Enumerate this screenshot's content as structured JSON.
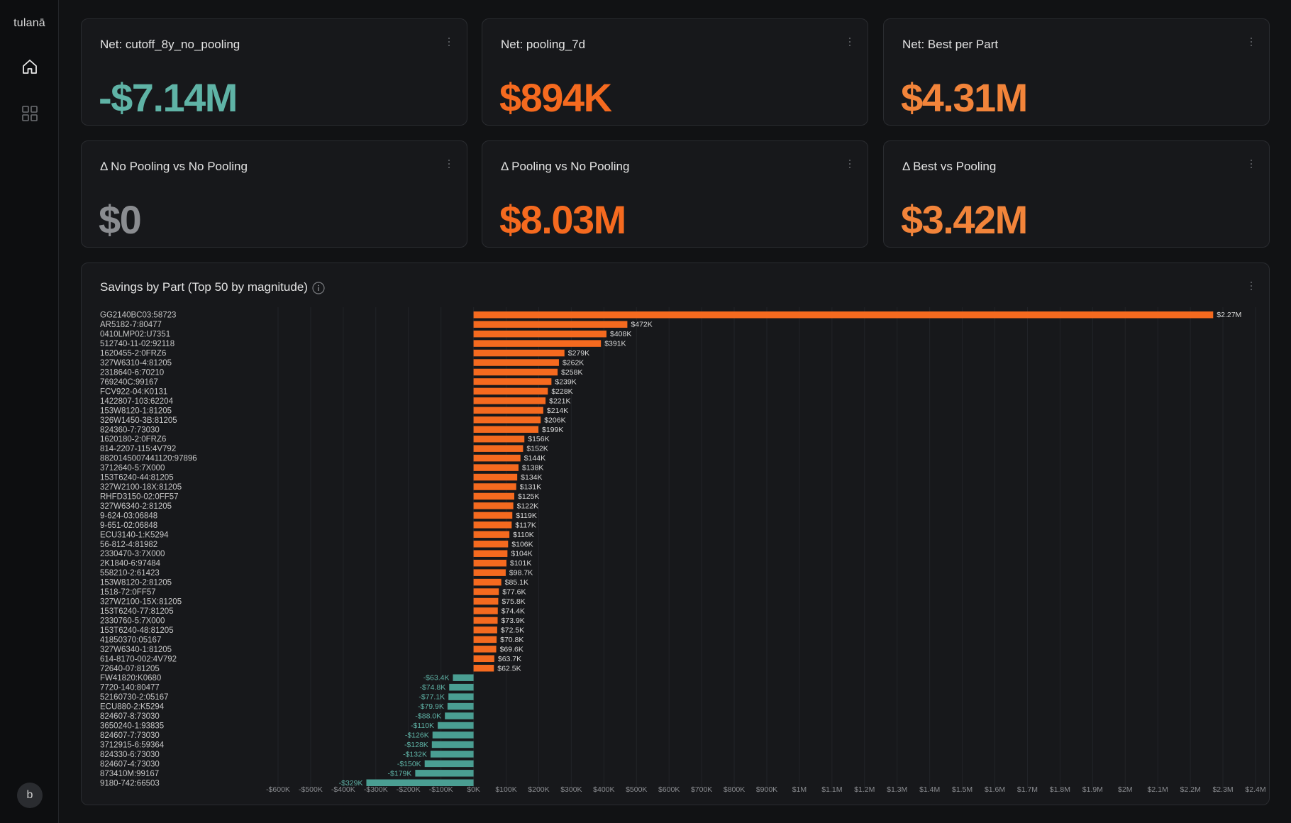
{
  "app": {
    "logo": "tulanā",
    "user_initial": "b"
  },
  "nav": [
    {
      "icon": "home-icon",
      "active": true
    },
    {
      "icon": "grid-icon",
      "active": false
    }
  ],
  "colors": {
    "orange": "#f56a1f",
    "teal": "#4a9e92",
    "gray": "#8a8c90",
    "light_orange": "#f2843a"
  },
  "kpis": [
    {
      "title": "Net: cutoff_8y_no_pooling",
      "value": "-$7.14M",
      "color": "#5fb3a6"
    },
    {
      "title": "Net: pooling_7d",
      "value": "$894K",
      "color": "#f56a1f"
    },
    {
      "title": "Net: Best per Part",
      "value": "$4.31M",
      "color": "#f2843a"
    },
    {
      "title": "Δ No Pooling vs No Pooling",
      "value": "$0",
      "color": "#8a8c90"
    },
    {
      "title": "Δ Pooling vs No Pooling",
      "value": "$8.03M",
      "color": "#f56a1f"
    },
    {
      "title": "Δ Best vs Pooling",
      "value": "$3.42M",
      "color": "#f2843a"
    }
  ],
  "chart": {
    "title": "Savings by Part (Top 50 by magnitude)"
  },
  "chart_data": {
    "type": "bar",
    "orientation": "horizontal",
    "title": "Savings by Part (Top 50 by magnitude)",
    "xlim": [
      -600000,
      2400000
    ],
    "grid": true,
    "x_ticks": [
      "-$600K",
      "-$500K",
      "-$400K",
      "-$300K",
      "-$200K",
      "-$100K",
      "$0K",
      "$100K",
      "$200K",
      "$300K",
      "$400K",
      "$500K",
      "$600K",
      "$700K",
      "$800K",
      "$900K",
      "$1M",
      "$1.1M",
      "$1.2M",
      "$1.3M",
      "$1.4M",
      "$1.5M",
      "$1.6M",
      "$1.7M",
      "$1.8M",
      "$1.9M",
      "$2M",
      "$2.1M",
      "$2.2M",
      "$2.3M",
      "$2.4M"
    ],
    "categories": [
      "GG2140BC03:58723",
      "AR5182-7:80477",
      "0410LMP02:U7351",
      "512740-11-02:92118",
      "1620455-2:0FRZ6",
      "327W6310-4:81205",
      "2318640-6:70210",
      "769240C:99167",
      "FCV922-04:K0131",
      "1422807-103:62204",
      "153W8120-1:81205",
      "326W1450-3B:81205",
      "824360-7:73030",
      "1620180-2:0FRZ6",
      "814-2207-115:4V792",
      "8820145007441120:97896",
      "3712640-5:7X000",
      "153T6240-44:81205",
      "327W2100-18X:81205",
      "RHFD3150-02:0FF57",
      "327W6340-2:81205",
      "9-624-03:06848",
      "9-651-02:06848",
      "ECU3140-1:K5294",
      "56-812-4:81982",
      "2330470-3:7X000",
      "2K1840-6:97484",
      "558210-2:61423",
      "153W8120-2:81205",
      "1518-72:0FF57",
      "327W2100-15X:81205",
      "153T6240-77:81205",
      "2330760-5:7X000",
      "153T6240-48:81205",
      "41850370:05167",
      "327W6340-1:81205",
      "614-8170-002:4V792",
      "72640-07:81205",
      "FW41820:K0680",
      "7720-140:80477",
      "52160730-2:05167",
      "ECU880-2:K5294",
      "824607-8:73030",
      "3650240-1:93835",
      "824607-7:73030",
      "3712915-6:59364",
      "824330-6:73030",
      "824607-4:73030",
      "873410M:99167",
      "9180-742:66503"
    ],
    "values": [
      2270000,
      472000,
      408000,
      391000,
      279000,
      262000,
      258000,
      239000,
      228000,
      221000,
      214000,
      206000,
      199000,
      156000,
      152000,
      144000,
      138000,
      134000,
      131000,
      125000,
      122000,
      119000,
      117000,
      110000,
      106000,
      104000,
      101000,
      98700,
      85100,
      77600,
      75800,
      74400,
      73900,
      72500,
      70800,
      69600,
      63700,
      62500,
      -63400,
      -74800,
      -77100,
      -79900,
      -88000,
      -110000,
      -126000,
      -128000,
      -132000,
      -150000,
      -179000,
      -329000
    ],
    "labels": [
      "$2.27M",
      "$472K",
      "$408K",
      "$391K",
      "$279K",
      "$262K",
      "$258K",
      "$239K",
      "$228K",
      "$221K",
      "$214K",
      "$206K",
      "$199K",
      "$156K",
      "$152K",
      "$144K",
      "$138K",
      "$134K",
      "$131K",
      "$125K",
      "$122K",
      "$119K",
      "$117K",
      "$110K",
      "$106K",
      "$104K",
      "$101K",
      "$98.7K",
      "$85.1K",
      "$77.6K",
      "$75.8K",
      "$74.4K",
      "$73.9K",
      "$72.5K",
      "$70.8K",
      "$69.6K",
      "$63.7K",
      "$62.5K",
      "-$63.4K",
      "-$74.8K",
      "-$77.1K",
      "-$79.9K",
      "-$88.0K",
      "-$110K",
      "-$126K",
      "-$128K",
      "-$132K",
      "-$150K",
      "-$179K",
      "-$329K"
    ]
  }
}
